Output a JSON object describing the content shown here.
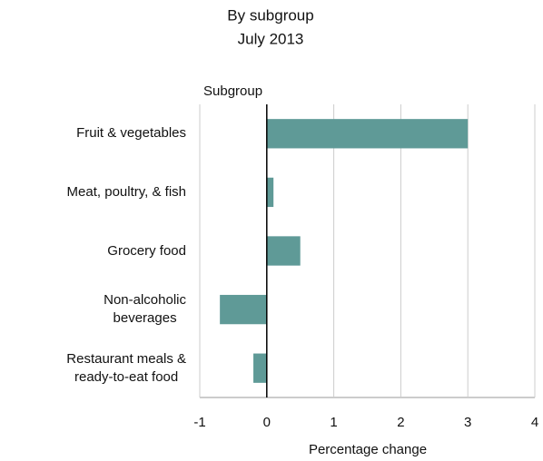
{
  "chart_data": {
    "type": "bar",
    "orientation": "horizontal",
    "subtitle": [
      "By subgroup",
      "July 2013"
    ],
    "y_label": "Subgroup",
    "x_label": "Percentage change",
    "categories": [
      "Fruit & vegetables",
      "Meat, poultry, & fish",
      "Grocery food",
      "Non-alcoholic\nbeverages",
      "Restaurant meals &\nready-to-eat food"
    ],
    "values": [
      3.0,
      0.1,
      0.5,
      -0.7,
      -0.2
    ],
    "color": "#5f9a97",
    "xlim": [
      -1,
      4
    ],
    "xticks": [
      -1,
      0,
      1,
      2,
      3,
      4
    ],
    "grid": true
  }
}
